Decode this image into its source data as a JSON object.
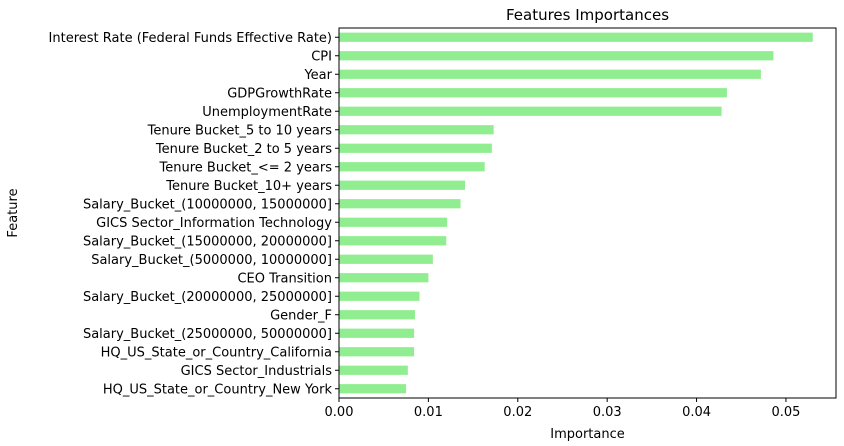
{
  "chart_data": {
    "type": "bar",
    "orientation": "horizontal",
    "title": "Features Importances",
    "xlabel": "Importance",
    "ylabel": "Feature",
    "xlim": [
      0,
      0.0556
    ],
    "xticks": [
      "0.00",
      "0.01",
      "0.02",
      "0.03",
      "0.04",
      "0.05"
    ],
    "xtick_values": [
      0,
      0.01,
      0.02,
      0.03,
      0.04,
      0.05
    ],
    "grid": false,
    "bar_color": "#90EE90",
    "categories": [
      "Interest Rate (Federal Funds Effective Rate)",
      "CPI",
      "Year",
      "GDPGrowthRate",
      "UnemploymentRate",
      "Tenure Bucket_5 to 10 years",
      "Tenure Bucket_2 to 5 years",
      "Tenure Bucket_<= 2 years",
      "Tenure Bucket_10+ years",
      "Salary_Bucket_(10000000, 15000000]",
      "GICS Sector_Information Technology",
      "Salary_Bucket_(15000000, 20000000]",
      "Salary_Bucket_(5000000, 10000000]",
      "CEO Transition",
      "Salary_Bucket_(20000000, 25000000]",
      "Gender_F",
      "Salary_Bucket_(25000000, 50000000]",
      "HQ_US_State_or_Country_California",
      "GICS Sector_Industrials",
      "HQ_US_State_or_Country_New York"
    ],
    "values": [
      0.053,
      0.0486,
      0.0472,
      0.0434,
      0.0428,
      0.0173,
      0.0171,
      0.0163,
      0.0141,
      0.0136,
      0.0121,
      0.012,
      0.0105,
      0.01,
      0.009,
      0.0085,
      0.0084,
      0.0084,
      0.0077,
      0.0075
    ]
  }
}
